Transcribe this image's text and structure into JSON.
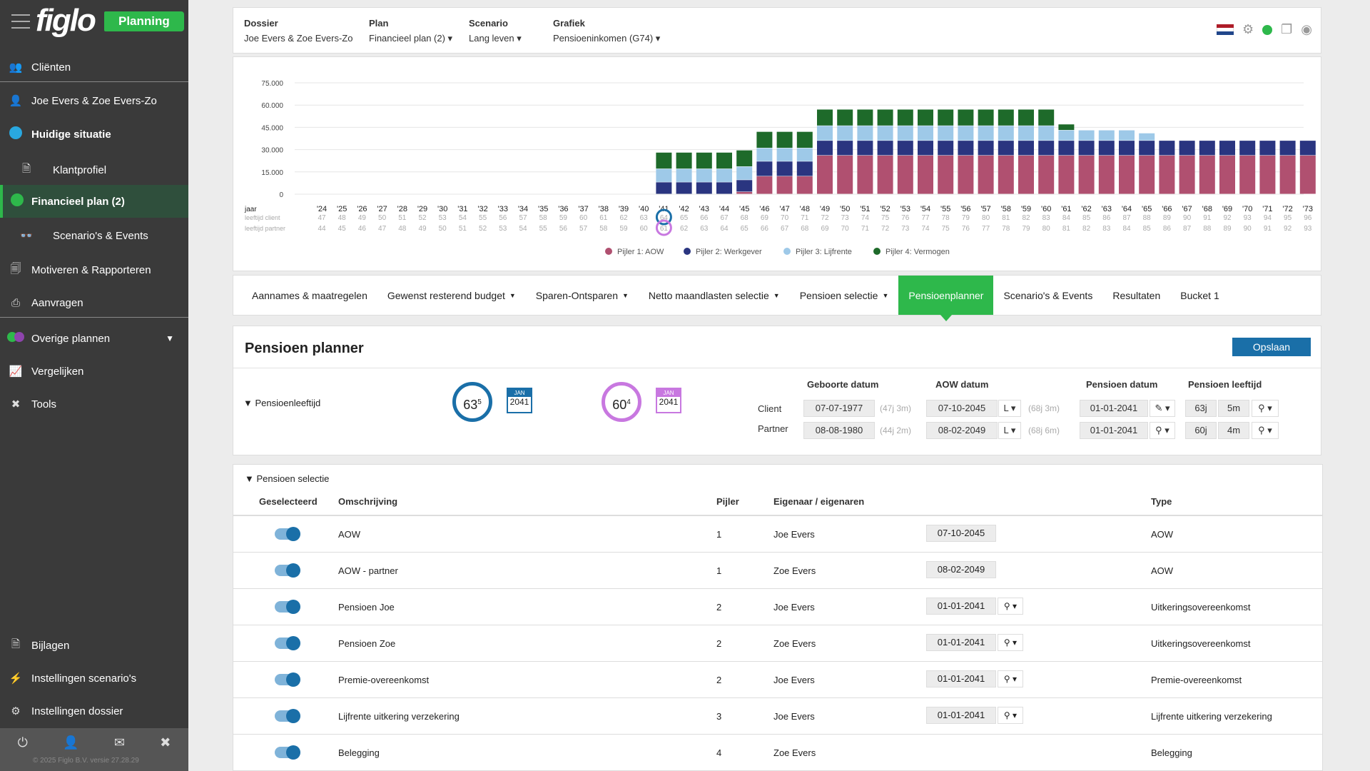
{
  "sidebar": {
    "logo": "figlo",
    "badge": "Planning",
    "items": [
      {
        "label": "Cliënten"
      },
      {
        "label": "Joe Evers & Zoe Evers-Zo"
      },
      {
        "label": "Huidige situatie"
      },
      {
        "label": "Klantprofiel"
      },
      {
        "label": "Financieel plan (2)"
      },
      {
        "label": "Scenario's & Events"
      },
      {
        "label": "Motiveren & Rapporteren"
      },
      {
        "label": "Aanvragen"
      },
      {
        "label": "Overige plannen"
      },
      {
        "label": "Vergelijken"
      },
      {
        "label": "Tools"
      },
      {
        "label": "Bijlagen"
      },
      {
        "label": "Instellingen scenario's"
      },
      {
        "label": "Instellingen dossier"
      }
    ],
    "version": "© 2025 Figlo B.V. versie 27.28.29"
  },
  "topbar": {
    "dossier_label": "Dossier",
    "dossier_value": "Joe Evers & Zoe Evers-Zo",
    "plan_label": "Plan",
    "plan_value": "Financieel plan (2) ▾",
    "scenario_label": "Scenario",
    "scenario_value": "Lang leven ▾",
    "grafiek_label": "Grafiek",
    "grafiek_value": "Pensioeninkomen (G74) ▾"
  },
  "chart_data": {
    "type": "bar",
    "stacked": true,
    "ylim": [
      0,
      75000
    ],
    "yticks": [
      "75.000",
      "60.000",
      "45.000",
      "30.000",
      "15.000",
      "0"
    ],
    "row_labels": [
      "jaar",
      "leeftijd client",
      "leeftijd partner"
    ],
    "categories": [
      "'24",
      "'25",
      "'26",
      "'27",
      "'28",
      "'29",
      "'30",
      "'31",
      "'32",
      "'33",
      "'34",
      "'35",
      "'36",
      "'37",
      "'38",
      "'39",
      "'40",
      "'41",
      "'42",
      "'43",
      "'44",
      "'45",
      "'46",
      "'47",
      "'48",
      "'49",
      "'50",
      "'51",
      "'52",
      "'53",
      "'54",
      "'55",
      "'56",
      "'57",
      "'58",
      "'59",
      "'60",
      "'61",
      "'62",
      "'63",
      "'64",
      "'65",
      "'66",
      "'67",
      "'68",
      "'69",
      "'70",
      "'71",
      "'72",
      "'73"
    ],
    "age_client": [
      47,
      48,
      49,
      50,
      51,
      52,
      53,
      54,
      55,
      56,
      57,
      58,
      59,
      60,
      61,
      62,
      63,
      64,
      65,
      66,
      67,
      68,
      69,
      70,
      71,
      72,
      73,
      74,
      75,
      76,
      77,
      78,
      79,
      80,
      81,
      82,
      83,
      84,
      85,
      86,
      87,
      88,
      89,
      90,
      91,
      92,
      93,
      94,
      95,
      96
    ],
    "age_partner": [
      44,
      45,
      46,
      47,
      48,
      49,
      50,
      51,
      52,
      53,
      54,
      55,
      56,
      57,
      58,
      59,
      60,
      61,
      62,
      63,
      64,
      65,
      66,
      67,
      68,
      69,
      70,
      71,
      72,
      73,
      74,
      75,
      76,
      77,
      78,
      79,
      80,
      81,
      82,
      83,
      84,
      85,
      86,
      87,
      88,
      89,
      90,
      91,
      92,
      93
    ],
    "series": [
      {
        "name": "Pijler 1: AOW",
        "color": "#b05070",
        "values": [
          0,
          0,
          0,
          0,
          0,
          0,
          0,
          0,
          0,
          0,
          0,
          0,
          0,
          0,
          0,
          0,
          0,
          0,
          0,
          0,
          0,
          1500,
          12000,
          12000,
          12000,
          26000,
          26000,
          26000,
          26000,
          26000,
          26000,
          26000,
          26000,
          26000,
          26000,
          26000,
          26000,
          26000,
          26000,
          26000,
          26000,
          26000,
          26000,
          26000,
          26000,
          26000,
          26000,
          26000,
          26000,
          26000
        ]
      },
      {
        "name": "Pijler 2: Werkgever",
        "color": "#2a3580",
        "values": [
          0,
          0,
          0,
          0,
          0,
          0,
          0,
          0,
          0,
          0,
          0,
          0,
          0,
          0,
          0,
          0,
          0,
          8000,
          8000,
          8000,
          8000,
          8000,
          10000,
          10000,
          10000,
          10000,
          10000,
          10000,
          10000,
          10000,
          10000,
          10000,
          10000,
          10000,
          10000,
          10000,
          10000,
          10000,
          10000,
          10000,
          10000,
          10000,
          10000,
          10000,
          10000,
          10000,
          10000,
          10000,
          10000,
          10000
        ]
      },
      {
        "name": "Pijler 3: Lijfrente",
        "color": "#9ec9e8",
        "values": [
          0,
          0,
          0,
          0,
          0,
          0,
          0,
          0,
          0,
          0,
          0,
          0,
          0,
          0,
          0,
          0,
          0,
          9000,
          9000,
          9000,
          9000,
          9000,
          9000,
          9000,
          9000,
          10000,
          10000,
          10000,
          10000,
          10000,
          10000,
          10000,
          10000,
          10000,
          10000,
          10000,
          10000,
          7000,
          7000,
          7000,
          7000,
          5000,
          0,
          0,
          0,
          0,
          0,
          0,
          0,
          0
        ]
      },
      {
        "name": "Pijler 4: Vermogen",
        "color": "#1e6a2a",
        "values": [
          0,
          0,
          0,
          0,
          0,
          0,
          0,
          0,
          0,
          0,
          0,
          0,
          0,
          0,
          0,
          0,
          0,
          11000,
          11000,
          11000,
          11000,
          11000,
          11000,
          11000,
          11000,
          11000,
          11000,
          11000,
          11000,
          11000,
          11000,
          11000,
          11000,
          11000,
          11000,
          11000,
          11000,
          4000,
          0,
          0,
          0,
          0,
          0,
          0,
          0,
          0,
          0,
          0,
          0,
          0
        ]
      }
    ]
  },
  "tabs": [
    {
      "label": "Aannames & maatregelen",
      "dropdown": false
    },
    {
      "label": "Gewenst resterend budget",
      "dropdown": true
    },
    {
      "label": "Sparen-Ontsparen",
      "dropdown": true
    },
    {
      "label": "Netto maandlasten selectie",
      "dropdown": true
    },
    {
      "label": "Pensioen selectie",
      "dropdown": true
    },
    {
      "label": "Pensioenplanner",
      "dropdown": false,
      "active": true
    },
    {
      "label": "Scenario's & Events",
      "dropdown": false
    },
    {
      "label": "Resultaten",
      "dropdown": false
    },
    {
      "label": "Bucket 1",
      "dropdown": false
    }
  ],
  "planner": {
    "title": "Pensioen planner",
    "save": "Opslaan",
    "toggle": "Pensioenleeftijd",
    "client_ring": {
      "main": "63",
      "sup": "5"
    },
    "client_cal": {
      "month": "JAN",
      "year": "2041"
    },
    "partner_ring": {
      "main": "60",
      "sup": "4"
    },
    "partner_cal": {
      "month": "JAN",
      "year": "2041"
    },
    "headers": {
      "birth": "Geboorte datum",
      "aow": "AOW datum",
      "pension": "Pensioen datum",
      "age": "Pensioen leeftijd"
    },
    "client": {
      "label": "Client",
      "birth": "07-07-1977",
      "birth_hint": "(47j 3m)",
      "aow": "07-10-2045",
      "aow_sel": "L ▾",
      "aow_hint": "(68j 3m)",
      "pension": "01-01-2041",
      "pension_icon": "✎ ▾",
      "years": "63j",
      "months": "5m",
      "link": "⚲ ▾"
    },
    "partner": {
      "label": "Partner",
      "birth": "08-08-1980",
      "birth_hint": "(44j 2m)",
      "aow": "08-02-2049",
      "aow_sel": "L ▾",
      "aow_hint": "(68j 6m)",
      "pension": "01-01-2041",
      "pension_icon": "⚲ ▾",
      "years": "60j",
      "months": "4m",
      "link": "⚲ ▾"
    }
  },
  "selection": {
    "title": "Pensioen selectie",
    "headers": {
      "selected": "Geselecteerd",
      "desc": "Omschrijving",
      "pillar": "Pijler",
      "owner": "Eigenaar / eigenaren",
      "type": "Type"
    },
    "rows": [
      {
        "desc": "AOW",
        "pillar": "1",
        "owner": "Joe Evers",
        "date": "07-10-2045",
        "link": false,
        "type": "AOW"
      },
      {
        "desc": "AOW - partner",
        "pillar": "1",
        "owner": "Zoe Evers",
        "date": "08-02-2049",
        "link": false,
        "type": "AOW"
      },
      {
        "desc": "Pensioen Joe",
        "pillar": "2",
        "owner": "Joe Evers",
        "date": "01-01-2041",
        "link": true,
        "type": "Uitkeringsovereenkomst"
      },
      {
        "desc": "Pensioen Zoe",
        "pillar": "2",
        "owner": "Zoe Evers",
        "date": "01-01-2041",
        "link": true,
        "type": "Uitkeringsovereenkomst"
      },
      {
        "desc": "Premie-overeenkomst",
        "pillar": "2",
        "owner": "Joe Evers",
        "date": "01-01-2041",
        "link": true,
        "type": "Premie-overeenkomst"
      },
      {
        "desc": "Lijfrente uitkering verzekering",
        "pillar": "3",
        "owner": "Joe Evers",
        "date": "01-01-2041",
        "link": true,
        "type": "Lijfrente uitkering verzekering"
      },
      {
        "desc": "Belegging",
        "pillar": "4",
        "owner": "Zoe Evers",
        "date": "",
        "link": false,
        "type": "Belegging"
      }
    ],
    "link_icon": "⚲ ▾"
  }
}
